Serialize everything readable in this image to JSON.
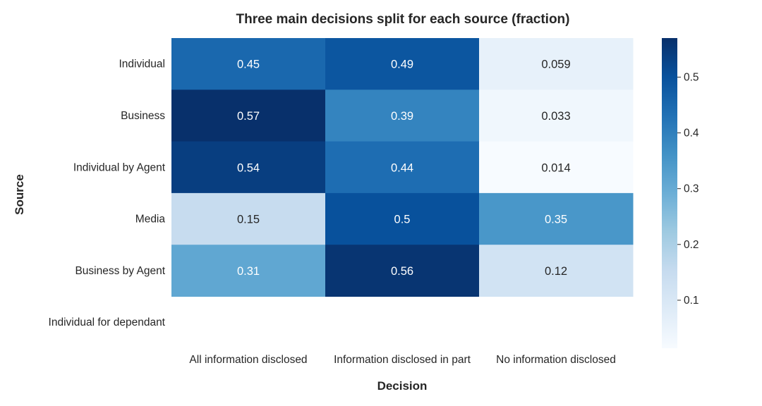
{
  "chart_data": {
    "type": "heatmap",
    "title": "Three main decisions split for each source (fraction)",
    "xlabel": "Decision",
    "ylabel": "Source",
    "x_categories": [
      "All information disclosed",
      "Information disclosed in part",
      "No information disclosed"
    ],
    "y_categories": [
      "Individual",
      "Business",
      "Individual by Agent",
      "Media",
      "Business by Agent",
      "Individual for dependant"
    ],
    "values": [
      [
        0.45,
        0.49,
        0.059
      ],
      [
        0.57,
        0.39,
        0.033
      ],
      [
        0.54,
        0.44,
        0.014
      ],
      [
        0.15,
        0.5,
        0.35
      ],
      [
        0.31,
        0.56,
        0.12
      ],
      [
        null,
        null,
        null
      ]
    ],
    "cell_labels": [
      [
        "0.45",
        "0.49",
        "0.059"
      ],
      [
        "0.57",
        "0.39",
        "0.033"
      ],
      [
        "0.54",
        "0.44",
        "0.014"
      ],
      [
        "0.15",
        "0.5",
        "0.35"
      ],
      [
        "0.31",
        "0.56",
        "0.12"
      ],
      [
        "",
        "",
        ""
      ]
    ],
    "colormap": "Blues",
    "vmin": 0.014,
    "vmax": 0.57,
    "colorbar_ticks": [
      "0.1",
      "0.2",
      "0.3",
      "0.4",
      "0.5"
    ],
    "colorbar_tick_values": [
      0.1,
      0.2,
      0.3,
      0.4,
      0.5
    ],
    "grid": false
  }
}
